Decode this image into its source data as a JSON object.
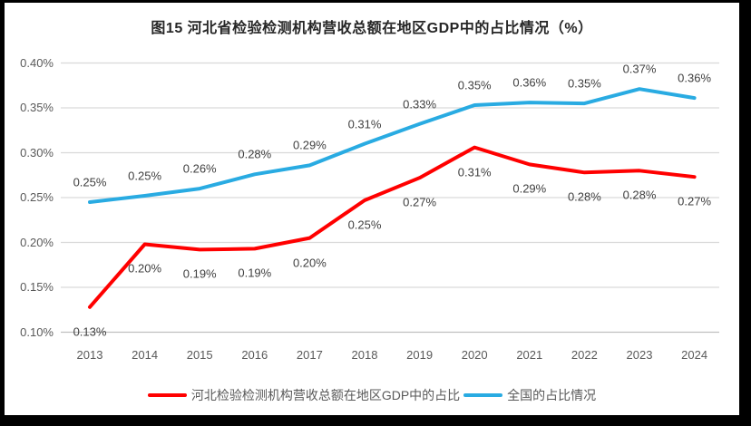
{
  "chart_data": {
    "type": "line",
    "title": "图15 河北省检验检测机构营收总额在地区GDP中的占比情况（%）",
    "categories": [
      "2013",
      "2014",
      "2015",
      "2016",
      "2017",
      "2018",
      "2019",
      "2020",
      "2021",
      "2022",
      "2023",
      "2024"
    ],
    "xlabel": "",
    "ylabel": "",
    "ylim": [
      0.1,
      0.4
    ],
    "y_ticks": [
      "0.40%",
      "0.35%",
      "0.30%",
      "0.25%",
      "0.20%",
      "0.15%",
      "0.10%"
    ],
    "y_tick_values": [
      0.4,
      0.35,
      0.3,
      0.25,
      0.2,
      0.15,
      0.1
    ],
    "grid": true,
    "legend_position": "bottom",
    "series": [
      {
        "name": "河北检验检测机构营收总额在地区GDP中的占比",
        "color": "#FF0000",
        "values": [
          0.13,
          0.2,
          0.19,
          0.19,
          0.2,
          0.25,
          0.27,
          0.31,
          0.29,
          0.28,
          0.28,
          0.27
        ],
        "point_labels": [
          "0.13%",
          "0.20%",
          "0.19%",
          "0.19%",
          "0.20%",
          "0.25%",
          "0.27%",
          "0.31%",
          "0.29%",
          "0.28%",
          "0.28%",
          "0.27%"
        ],
        "plot_values": [
          0.128,
          0.198,
          0.192,
          0.193,
          0.205,
          0.247,
          0.272,
          0.306,
          0.287,
          0.278,
          0.28,
          0.273
        ],
        "label_side": "below"
      },
      {
        "name": "全国的占比情况",
        "color": "#29ABE2",
        "values": [
          0.25,
          0.25,
          0.26,
          0.28,
          0.29,
          0.31,
          0.33,
          0.35,
          0.36,
          0.35,
          0.37,
          0.36
        ],
        "point_labels": [
          "0.25%",
          "0.25%",
          "0.26%",
          "0.28%",
          "0.29%",
          "0.31%",
          "0.33%",
          "0.35%",
          "0.36%",
          "0.35%",
          "0.37%",
          "0.36%"
        ],
        "plot_values": [
          0.245,
          0.252,
          0.26,
          0.276,
          0.286,
          0.31,
          0.332,
          0.353,
          0.356,
          0.355,
          0.371,
          0.361
        ],
        "label_side": "above"
      }
    ]
  },
  "colors": {
    "frame": "#000000",
    "canvas": "#FFFFFF",
    "gridline": "#D9D9D9",
    "axis_line": "#BFBFBF",
    "tick_text": "#595959",
    "data_label_text": "#404040",
    "title_text": "#262626"
  }
}
